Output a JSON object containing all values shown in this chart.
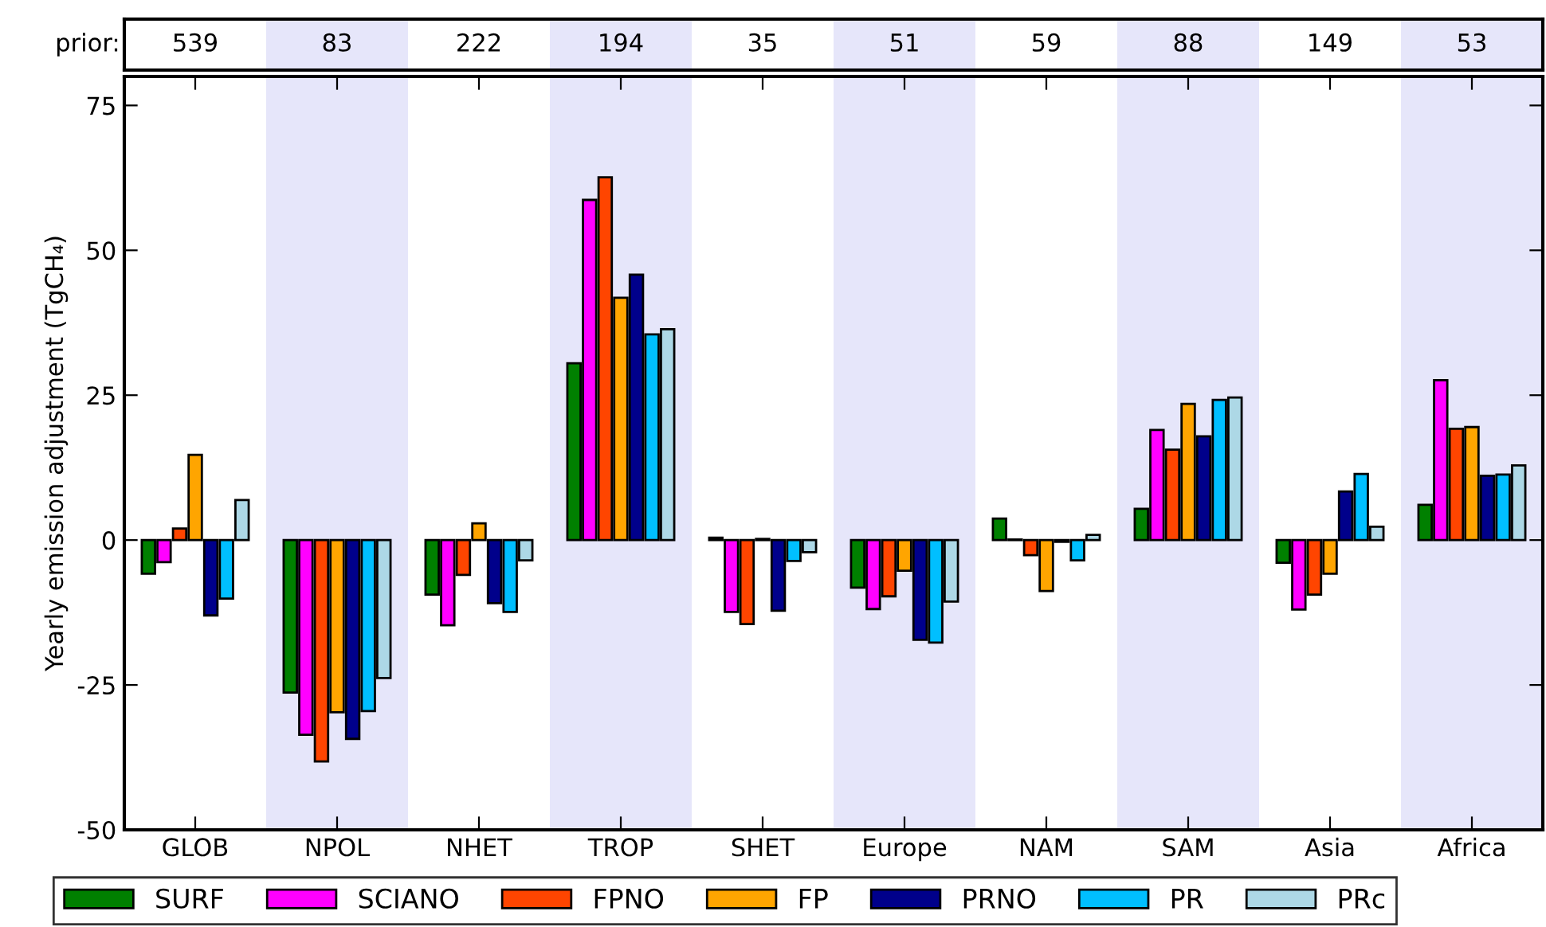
{
  "chart_data": {
    "type": "bar",
    "ylabel": "Yearly emission adjustment (TgCH₄)",
    "categories": [
      "GLOB",
      "NPOL",
      "NHET",
      "TROP",
      "SHET",
      "Europe",
      "NAM",
      "SAM",
      "Asia",
      "Africa"
    ],
    "series": [
      {
        "name": "SURF",
        "color": "#008000",
        "values": [
          -5.8,
          -26.3,
          -9.4,
          30.5,
          0.4,
          -8.2,
          3.7,
          5.4,
          -3.9,
          6.1
        ]
      },
      {
        "name": "SCIANO",
        "color": "#ff00ff",
        "values": [
          -3.8,
          -33.6,
          -14.7,
          58.7,
          -12.4,
          -11.9,
          0.1,
          19.0,
          -12.0,
          27.6
        ]
      },
      {
        "name": "FPNO",
        "color": "#ff4500",
        "values": [
          2.0,
          -38.2,
          -6.0,
          62.6,
          -14.5,
          -9.7,
          -2.6,
          15.6,
          -9.4,
          19.2
        ]
      },
      {
        "name": "FP",
        "color": "#ffa500",
        "values": [
          14.7,
          -29.7,
          2.9,
          41.8,
          0.2,
          -5.3,
          -8.8,
          23.5,
          -5.8,
          19.5
        ]
      },
      {
        "name": "PRNO",
        "color": "#00008b",
        "values": [
          -13.0,
          -34.3,
          -10.9,
          45.8,
          -12.2,
          -17.2,
          -0.3,
          17.9,
          8.4,
          11.1
        ]
      },
      {
        "name": "PR",
        "color": "#00bfff",
        "values": [
          -10.1,
          -29.5,
          -12.4,
          35.5,
          -3.6,
          -17.7,
          -3.5,
          24.2,
          11.4,
          11.3
        ]
      },
      {
        "name": "PRc",
        "color": "#add8e6",
        "values": [
          6.9,
          -23.8,
          -3.5,
          36.4,
          -2.1,
          -10.6,
          0.9,
          24.6,
          2.3,
          12.9
        ]
      }
    ],
    "ylim": [
      -50,
      80
    ],
    "yticks": [
      -50,
      -25,
      0,
      25,
      50,
      75
    ],
    "bands": [
      {
        "axis": "x",
        "from": "NPOL",
        "to": "NPOL",
        "color": "#e6e6fa"
      },
      {
        "axis": "x",
        "from": "TROP",
        "to": "TROP",
        "color": "#e6e6fa"
      },
      {
        "axis": "x",
        "from": "Europe",
        "to": "Europe",
        "color": "#e6e6fa"
      },
      {
        "axis": "x",
        "from": "SAM",
        "to": "SAM",
        "color": "#e6e6fa"
      },
      {
        "axis": "x",
        "from": "Africa",
        "to": "Africa",
        "color": "#e6e6fa"
      }
    ],
    "annotations": [
      "prior:",
      "539",
      "83",
      "222",
      "194",
      "35",
      "51",
      "59",
      "88",
      "149",
      "53"
    ],
    "legend": "bottom",
    "grid": false
  }
}
